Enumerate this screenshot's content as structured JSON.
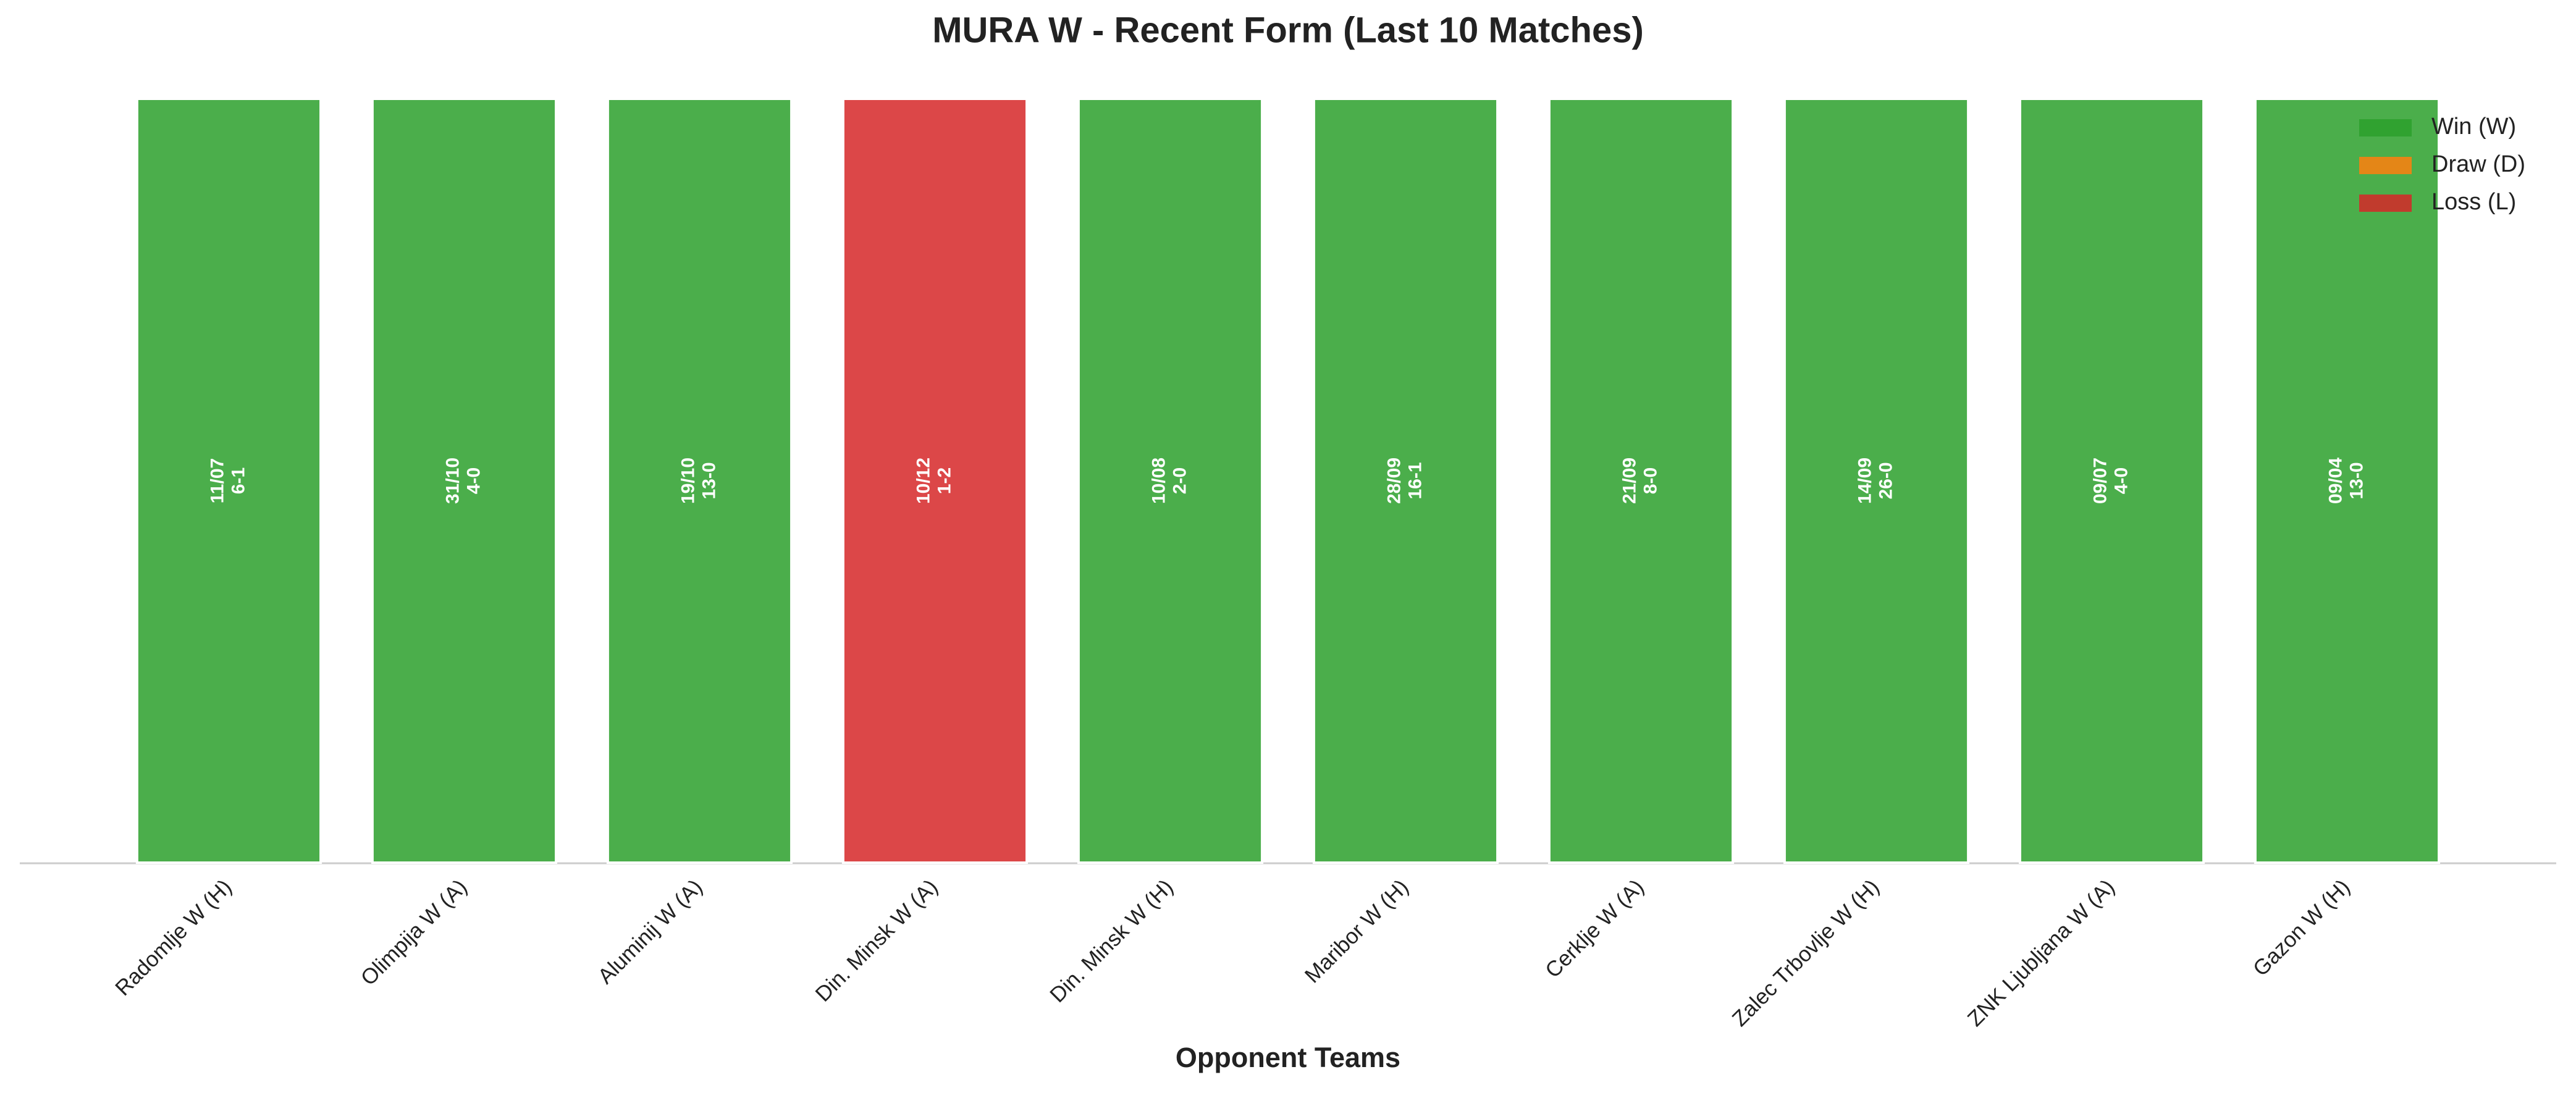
{
  "chart_data": {
    "type": "bar",
    "title": "MURA W - Recent Form (Last 10 Matches)",
    "x_label": "Opponent Teams",
    "categories": [
      "Radomlje W (H)",
      "Olimpija W (A)",
      "Aluminij W (A)",
      "Din. Minsk W (A)",
      "Din. Minsk W (H)",
      "Maribor W (H)",
      "Cerklje W (A)",
      "Zalec Trbovlje W (H)",
      "ZNK Ljubljana W (A)",
      "Gazon W (H)"
    ],
    "values": [
      1,
      1,
      1,
      1,
      1,
      1,
      1,
      1,
      1,
      1
    ],
    "dates": [
      "11/07",
      "31/10",
      "19/10",
      "10/12",
      "10/08",
      "28/09",
      "21/09",
      "14/09",
      "09/07",
      "09/04"
    ],
    "scores": [
      "6-1",
      "4-0",
      "13-0",
      "1-2",
      "2-0",
      "16-1",
      "8-0",
      "26-0",
      "4-0",
      "13-0"
    ],
    "colors": [
      "#2ca02c",
      "#2ca02c",
      "#2ca02c",
      "#d62728",
      "#2ca02c",
      "#2ca02c",
      "#2ca02c",
      "#2ca02c",
      "#2ca02c",
      "#2ca02c"
    ],
    "ylim": [
      0,
      1
    ],
    "legend_position": "upper right",
    "legend": [
      {
        "name": "Win (W)",
        "color": "#2ca02c"
      },
      {
        "name": "Draw (D)",
        "color": "#ff7f0e"
      },
      {
        "name": "Loss (L)",
        "color": "#d62728"
      }
    ]
  }
}
